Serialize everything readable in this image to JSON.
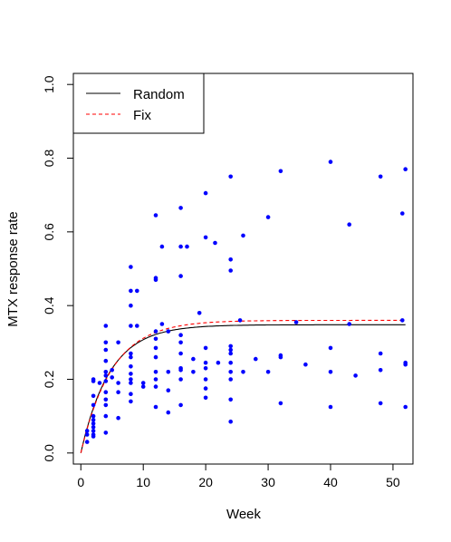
{
  "chart_data": {
    "type": "scatter",
    "title": "",
    "xlabel": "Week",
    "ylabel": "MTX response rate",
    "xlim": [
      -1.2,
      53.2
    ],
    "ylim": [
      -0.03,
      1.03
    ],
    "x_ticks": [
      0,
      10,
      20,
      30,
      40,
      50
    ],
    "y_ticks": [
      0.0,
      0.2,
      0.4,
      0.6,
      0.8,
      1.0
    ],
    "x_tick_labels": [
      "0",
      "10",
      "20",
      "30",
      "40",
      "50"
    ],
    "y_tick_labels": [
      "0.0",
      "0.2",
      "0.4",
      "0.6",
      "0.8",
      "1.0"
    ],
    "grid": false,
    "legend_position": "top-left",
    "legend": [
      {
        "label": "Random",
        "color": "#000000",
        "style": "solid"
      },
      {
        "label": "Fix",
        "color": "#ff0000",
        "style": "dashed"
      }
    ],
    "point_color": "#0000ff",
    "points": [
      [
        1,
        0.03
      ],
      [
        1,
        0.05
      ],
      [
        1,
        0.06
      ],
      [
        2,
        0.045
      ],
      [
        2,
        0.05
      ],
      [
        2,
        0.06
      ],
      [
        2,
        0.07
      ],
      [
        2,
        0.08
      ],
      [
        2,
        0.09
      ],
      [
        2,
        0.1
      ],
      [
        2,
        0.13
      ],
      [
        2,
        0.155
      ],
      [
        2,
        0.195
      ],
      [
        2,
        0.2
      ],
      [
        3,
        0.19
      ],
      [
        4,
        0.055
      ],
      [
        4,
        0.1
      ],
      [
        4,
        0.13
      ],
      [
        4,
        0.145
      ],
      [
        4,
        0.165
      ],
      [
        4,
        0.195
      ],
      [
        4,
        0.21
      ],
      [
        4,
        0.22
      ],
      [
        4,
        0.25
      ],
      [
        4,
        0.28
      ],
      [
        4,
        0.3
      ],
      [
        4,
        0.345
      ],
      [
        5,
        0.205
      ],
      [
        5,
        0.225
      ],
      [
        6,
        0.095
      ],
      [
        6,
        0.165
      ],
      [
        6,
        0.19
      ],
      [
        6,
        0.3
      ],
      [
        8,
        0.14
      ],
      [
        8,
        0.16
      ],
      [
        8,
        0.19
      ],
      [
        8,
        0.2
      ],
      [
        8,
        0.215
      ],
      [
        8,
        0.235
      ],
      [
        8,
        0.26
      ],
      [
        8,
        0.27
      ],
      [
        8,
        0.345
      ],
      [
        8,
        0.4
      ],
      [
        8,
        0.44
      ],
      [
        8,
        0.505
      ],
      [
        9,
        0.345
      ],
      [
        9,
        0.44
      ],
      [
        10,
        0.18
      ],
      [
        10,
        0.19
      ],
      [
        12,
        0.125
      ],
      [
        12,
        0.18
      ],
      [
        12,
        0.2
      ],
      [
        12,
        0.22
      ],
      [
        12,
        0.26
      ],
      [
        12,
        0.285
      ],
      [
        12,
        0.31
      ],
      [
        12,
        0.33
      ],
      [
        12,
        0.47
      ],
      [
        12,
        0.475
      ],
      [
        12,
        0.645
      ],
      [
        13,
        0.35
      ],
      [
        13,
        0.56
      ],
      [
        14,
        0.11
      ],
      [
        14,
        0.17
      ],
      [
        14,
        0.22
      ],
      [
        14,
        0.33
      ],
      [
        16,
        0.13
      ],
      [
        16,
        0.2
      ],
      [
        16,
        0.225
      ],
      [
        16,
        0.23
      ],
      [
        16,
        0.27
      ],
      [
        16,
        0.3
      ],
      [
        16,
        0.32
      ],
      [
        16,
        0.48
      ],
      [
        16,
        0.56
      ],
      [
        16,
        0.665
      ],
      [
        17,
        0.56
      ],
      [
        18,
        0.22
      ],
      [
        18,
        0.255
      ],
      [
        19,
        0.38
      ],
      [
        20,
        0.15
      ],
      [
        20,
        0.175
      ],
      [
        20,
        0.2
      ],
      [
        20,
        0.23
      ],
      [
        20,
        0.245
      ],
      [
        20,
        0.285
      ],
      [
        20,
        0.585
      ],
      [
        20,
        0.705
      ],
      [
        21.5,
        0.57
      ],
      [
        22,
        0.245
      ],
      [
        24,
        0.085
      ],
      [
        24,
        0.145
      ],
      [
        24,
        0.2
      ],
      [
        24,
        0.22
      ],
      [
        24,
        0.245
      ],
      [
        24,
        0.27
      ],
      [
        24,
        0.28
      ],
      [
        24,
        0.29
      ],
      [
        24,
        0.495
      ],
      [
        24,
        0.525
      ],
      [
        24,
        0.75
      ],
      [
        25.5,
        0.36
      ],
      [
        26,
        0.22
      ],
      [
        26,
        0.59
      ],
      [
        28,
        0.255
      ],
      [
        30,
        0.22
      ],
      [
        30,
        0.64
      ],
      [
        32,
        0.135
      ],
      [
        32,
        0.26
      ],
      [
        32,
        0.265
      ],
      [
        32,
        0.765
      ],
      [
        34.5,
        0.355
      ],
      [
        36,
        0.24
      ],
      [
        40,
        0.125
      ],
      [
        40,
        0.22
      ],
      [
        40,
        0.285
      ],
      [
        40,
        0.79
      ],
      [
        43,
        0.35
      ],
      [
        43,
        0.62
      ],
      [
        44,
        0.21
      ],
      [
        48,
        0.135
      ],
      [
        48,
        0.225
      ],
      [
        48,
        0.27
      ],
      [
        48,
        0.75
      ],
      [
        51.5,
        0.36
      ],
      [
        51.5,
        0.65
      ],
      [
        52,
        0.125
      ],
      [
        52,
        0.24
      ],
      [
        52,
        0.245
      ],
      [
        52,
        0.77
      ]
    ],
    "curves": {
      "Random": {
        "asymptote": 0.348,
        "rate": 0.215
      },
      "Fix": {
        "asymptote": 0.36,
        "rate": 0.2
      }
    }
  }
}
